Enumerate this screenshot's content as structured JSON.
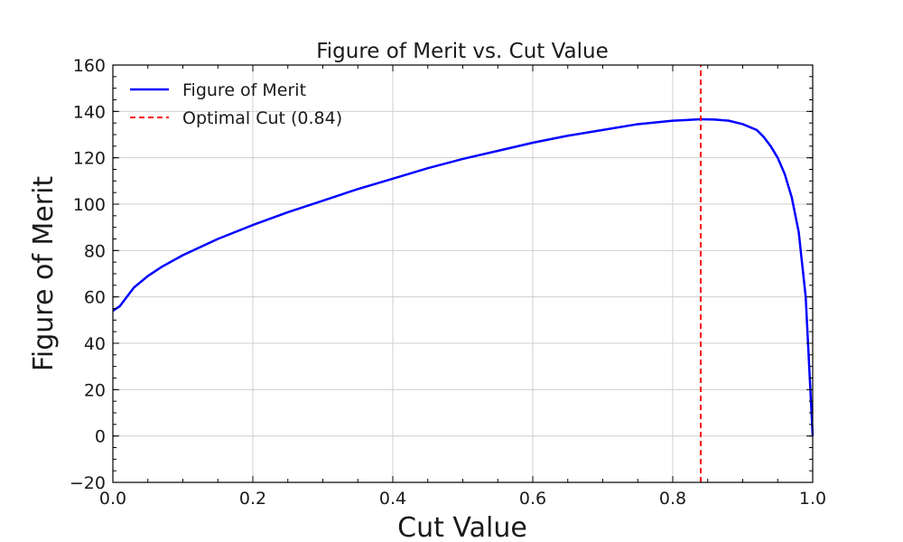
{
  "chart_data": {
    "type": "line",
    "title": "Figure of Merit vs. Cut Value",
    "xlabel": "Cut Value",
    "ylabel": "Figure of Merit",
    "xlim": [
      0.0,
      1.0
    ],
    "ylim": [
      -20,
      160
    ],
    "xticks": [
      0.0,
      0.2,
      0.4,
      0.6,
      0.8,
      1.0
    ],
    "xtick_labels": [
      "0.0",
      "0.2",
      "0.4",
      "0.6",
      "0.8",
      "1.0"
    ],
    "yticks": [
      -20,
      0,
      20,
      40,
      60,
      80,
      100,
      120,
      140,
      160
    ],
    "ytick_labels": [
      "−20",
      "0",
      "20",
      "40",
      "60",
      "80",
      "100",
      "120",
      "140",
      "160"
    ],
    "grid": true,
    "legend_position": "top-left",
    "series": [
      {
        "name": "Figure of Merit",
        "color": "#0000ff",
        "style": "solid",
        "x": [
          0.0,
          0.01,
          0.02,
          0.03,
          0.05,
          0.07,
          0.1,
          0.15,
          0.2,
          0.25,
          0.3,
          0.35,
          0.4,
          0.45,
          0.5,
          0.55,
          0.6,
          0.65,
          0.7,
          0.75,
          0.8,
          0.84,
          0.86,
          0.88,
          0.9,
          0.92,
          0.93,
          0.94,
          0.95,
          0.96,
          0.97,
          0.98,
          0.99,
          1.0
        ],
        "y": [
          54,
          56,
          60,
          64,
          69,
          73,
          78,
          85,
          91,
          96.5,
          101.5,
          106.5,
          111,
          115.5,
          119.5,
          123,
          126.5,
          129.5,
          132,
          134.5,
          136,
          136.6,
          136.5,
          136,
          134.5,
          132,
          129,
          125,
          120,
          113,
          103,
          88,
          60,
          0
        ]
      },
      {
        "name": "Optimal Cut (0.84)",
        "color": "#ff0000",
        "style": "dashed",
        "x": [
          0.84,
          0.84
        ],
        "y": [
          -20,
          160
        ]
      }
    ],
    "optimal_cut": 0.84
  }
}
